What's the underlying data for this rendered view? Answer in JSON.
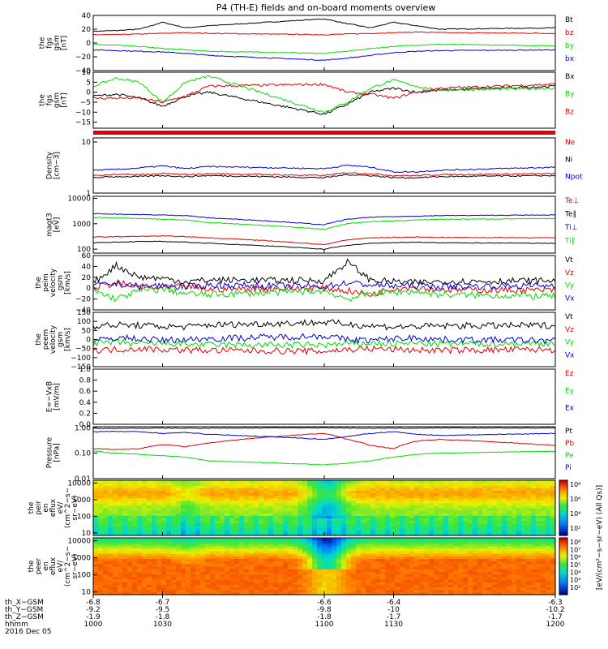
{
  "title": "P4 (TH-E) fields and on-board moments overview",
  "colors": {
    "black": "#000000",
    "red": "#e00000",
    "green": "#00dd00",
    "blue": "#0000e0"
  },
  "chart_data": [
    {
      "type": "line",
      "id": "fgs_gsm",
      "ylabel": [
        "the",
        "fgs",
        "gsm",
        "[nT]"
      ],
      "ylim": [
        -40,
        40
      ],
      "ticks": [
        "40",
        "20",
        "0",
        "−20",
        "−40"
      ],
      "tick_values": [
        40,
        20,
        0,
        -20,
        -40
      ],
      "x": [
        1000,
        1010,
        1020,
        1030,
        1040,
        1050,
        1100,
        1110,
        1120,
        1130,
        1140,
        1150,
        1200
      ],
      "series": [
        {
          "name": "Bt",
          "color": "black",
          "values": [
            17,
            18,
            20,
            30,
            22,
            25,
            35,
            28,
            22,
            30,
            25,
            20,
            22
          ]
        },
        {
          "name": "bz",
          "color": "red",
          "values": [
            12,
            12,
            13,
            14,
            15,
            14,
            12,
            13,
            14,
            15,
            16,
            15,
            14
          ]
        },
        {
          "name": "by",
          "color": "green",
          "values": [
            -2,
            -3,
            -5,
            -8,
            -10,
            -12,
            -15,
            -12,
            -8,
            -5,
            -3,
            -2,
            -4
          ]
        },
        {
          "name": "bx",
          "color": "blue",
          "values": [
            -10,
            -11,
            -12,
            -13,
            -15,
            -18,
            -25,
            -22,
            -18,
            -14,
            -12,
            -11,
            -10
          ]
        }
      ]
    },
    {
      "type": "line",
      "id": "fgs_dsl",
      "ylabel": [
        "the",
        "fgs",
        "gsm",
        "[nT]"
      ],
      "ylim": [
        -18,
        10
      ],
      "ticks": [
        "10",
        "5",
        "0",
        "−5",
        "−10",
        "−15"
      ],
      "tick_values": [
        10,
        5,
        0,
        -5,
        -10,
        -15
      ],
      "x": [
        1000,
        1010,
        1020,
        1030,
        1040,
        1050,
        1100,
        1110,
        1120,
        1130,
        1140,
        1150,
        1200
      ],
      "series": [
        {
          "name": "Bx",
          "color": "black",
          "values": [
            -2,
            -1,
            -3,
            -7,
            -2,
            0,
            -11,
            -6,
            0,
            2,
            0,
            1,
            3
          ]
        },
        {
          "name": "By",
          "color": "green",
          "values": [
            3,
            7,
            5,
            -5,
            5,
            8,
            -10,
            -5,
            2,
            6,
            3,
            1,
            2
          ]
        },
        {
          "name": "Bz",
          "color": "red",
          "values": [
            -3,
            -3,
            -3,
            -5,
            -2,
            3,
            4,
            0,
            -1,
            -3,
            0,
            2,
            4
          ]
        }
      ]
    },
    {
      "type": "line",
      "id": "density",
      "log": true,
      "ylabel": [
        "Density",
        "[cm−3]"
      ],
      "ylim": [
        1,
        12
      ],
      "ticks": [
        "10",
        "1"
      ],
      "tick_values": [
        10,
        1
      ],
      "x": [
        1000,
        1010,
        1020,
        1030,
        1040,
        1050,
        1100,
        1110,
        1120,
        1130,
        1140,
        1150,
        1200
      ],
      "series": [
        {
          "name": "Ne",
          "color": "red",
          "values": [
            2.2,
            2.3,
            2.3,
            2.4,
            2.3,
            2.4,
            2.2,
            2.5,
            2.4,
            2.2,
            2.2,
            2.3,
            2.4
          ]
        },
        {
          "name": "Ni",
          "color": "black",
          "values": [
            2.0,
            2.1,
            2.1,
            2.2,
            2.1,
            2.2,
            2.0,
            2.3,
            2.2,
            2.0,
            2.0,
            2.1,
            2.2
          ]
        },
        {
          "name": "Npot",
          "color": "blue",
          "values": [
            2.8,
            2.9,
            3.1,
            3.4,
            3.0,
            3.3,
            3.0,
            3.5,
            3.2,
            2.6,
            2.6,
            2.8,
            3.2
          ]
        }
      ]
    },
    {
      "type": "line",
      "id": "temperature",
      "log": true,
      "ylabel": [
        "magt3",
        "[eV]"
      ],
      "ylim": [
        70,
        12000
      ],
      "ticks": [
        "10000",
        "1000",
        "100"
      ],
      "tick_values": [
        10000,
        1000,
        100
      ],
      "x": [
        1000,
        1010,
        1020,
        1030,
        1040,
        1050,
        1100,
        1110,
        1120,
        1130,
        1140,
        1150,
        1200
      ],
      "series": [
        {
          "name": "Te⊥",
          "color": "red",
          "values": [
            300,
            310,
            320,
            330,
            310,
            280,
            150,
            230,
            280,
            290,
            300,
            290,
            280
          ]
        },
        {
          "name": "Te∥",
          "color": "black",
          "values": [
            180,
            190,
            200,
            200,
            190,
            170,
            100,
            140,
            170,
            180,
            190,
            180,
            170
          ]
        },
        {
          "name": "Ti⊥",
          "color": "blue",
          "values": [
            2500,
            2400,
            2300,
            2200,
            2100,
            1700,
            900,
            1500,
            1800,
            1900,
            2000,
            2100,
            2200
          ]
        },
        {
          "name": "Ti∥",
          "color": "green",
          "values": [
            1800,
            1700,
            1600,
            1500,
            1400,
            1100,
            600,
            1000,
            1200,
            1300,
            1400,
            1500,
            1600
          ]
        }
      ]
    },
    {
      "type": "line",
      "id": "peim_velocity",
      "ylabel": [
        "the",
        "peim",
        "velocity",
        "gsm",
        "[km/s]"
      ],
      "ylim": [
        -40,
        60
      ],
      "ticks": [
        "60",
        "40",
        "20",
        "0",
        "−20",
        "−40"
      ],
      "tick_values": [
        60,
        40,
        20,
        0,
        -20,
        -40
      ],
      "x": [
        1000,
        1010,
        1020,
        1030,
        1040,
        1050,
        1100,
        1110,
        1120,
        1130,
        1140,
        1150,
        1200
      ],
      "series": [
        {
          "name": "Vt",
          "color": "black",
          "values": [
            10,
            42,
            20,
            18,
            12,
            15,
            14,
            48,
            15,
            12,
            10,
            12,
            14
          ]
        },
        {
          "name": "Vz",
          "color": "red",
          "values": [
            0,
            10,
            2,
            0,
            3,
            -2,
            0,
            -5,
            -12,
            0,
            2,
            -3,
            -4
          ]
        },
        {
          "name": "Vy",
          "color": "green",
          "values": [
            -5,
            -20,
            -5,
            -2,
            -10,
            -12,
            -5,
            -20,
            -10,
            -8,
            -6,
            -12,
            -15
          ]
        },
        {
          "name": "Vx",
          "color": "blue",
          "values": [
            5,
            8,
            3,
            5,
            2,
            6,
            3,
            10,
            6,
            4,
            5,
            3,
            5
          ]
        }
      ]
    },
    {
      "type": "line",
      "id": "peem_velocity",
      "ylabel": [
        "the",
        "peem",
        "velocity",
        "gsm",
        "[km/s]"
      ],
      "ylim": [
        -150,
        150
      ],
      "ticks": [
        "150",
        "100",
        "50",
        "0",
        "−50",
        "−100",
        "−150"
      ],
      "tick_values": [
        150,
        100,
        50,
        0,
        -50,
        -100,
        -150
      ],
      "x": [
        1000,
        1010,
        1020,
        1030,
        1040,
        1050,
        1100,
        1110,
        1120,
        1130,
        1140,
        1150,
        1200
      ],
      "series": [
        {
          "name": "Vt",
          "color": "black",
          "values": [
            75,
            80,
            78,
            72,
            70,
            80,
            95,
            85,
            75,
            70,
            72,
            75,
            78
          ]
        },
        {
          "name": "Vz",
          "color": "red",
          "values": [
            -60,
            -55,
            -50,
            -55,
            -58,
            -60,
            -65,
            -55,
            -50,
            -55,
            -58,
            -60,
            -55
          ]
        },
        {
          "name": "Vy",
          "color": "green",
          "values": [
            -20,
            -15,
            -25,
            -20,
            -25,
            -30,
            -30,
            -25,
            -20,
            -25,
            -20,
            -25,
            -20
          ]
        },
        {
          "name": "Vx",
          "color": "blue",
          "values": [
            -10,
            10,
            5,
            -5,
            0,
            5,
            20,
            0,
            -5,
            5,
            10,
            0,
            -5
          ]
        }
      ]
    },
    {
      "type": "line",
      "id": "e_field",
      "ylabel": [
        "E=−VxB",
        "[mV/m]"
      ],
      "ylim": [
        0,
        1
      ],
      "ticks": [
        "1.0",
        "0.8",
        "0.6",
        "0.4",
        "0.2",
        "0.0"
      ],
      "tick_values": [
        1.0,
        0.8,
        0.6,
        0.4,
        0.2,
        0.0
      ],
      "x": [],
      "series": [
        {
          "name": "Ez",
          "color": "red",
          "values": []
        },
        {
          "name": "Ey",
          "color": "green",
          "values": []
        },
        {
          "name": "Ex",
          "color": "blue",
          "values": []
        }
      ]
    },
    {
      "type": "line",
      "id": "pressure",
      "log": true,
      "ylabel": [
        "Pressure",
        "[nPa]"
      ],
      "ylim": [
        0.01,
        1.1
      ],
      "ticks": [
        "1.00",
        "0.10",
        "0.01"
      ],
      "tick_values": [
        1.0,
        0.1,
        0.01
      ],
      "x": [
        1000,
        1010,
        1020,
        1030,
        1040,
        1050,
        1100,
        1110,
        1120,
        1130,
        1140,
        1150,
        1200
      ],
      "series": [
        {
          "name": "Pt",
          "color": "black",
          "values": [
            0.95,
            0.95,
            0.96,
            0.97,
            0.96,
            0.97,
            1.0,
            0.98,
            0.96,
            0.96,
            0.97,
            0.98,
            0.98
          ]
        },
        {
          "name": "Pb",
          "color": "red",
          "values": [
            0.15,
            0.14,
            0.15,
            0.22,
            0.18,
            0.25,
            0.6,
            0.35,
            0.2,
            0.15,
            0.3,
            0.35,
            0.2
          ]
        },
        {
          "name": "Pe",
          "color": "green",
          "values": [
            0.12,
            0.1,
            0.09,
            0.08,
            0.07,
            0.05,
            0.035,
            0.04,
            0.05,
            0.07,
            0.09,
            0.1,
            0.12
          ]
        },
        {
          "name": "Pi",
          "color": "blue",
          "values": [
            0.7,
            0.72,
            0.7,
            0.6,
            0.65,
            0.55,
            0.35,
            0.45,
            0.6,
            0.7,
            0.55,
            0.5,
            0.6
          ]
        }
      ]
    },
    {
      "type": "heatmap",
      "id": "peir_eflux",
      "log": true,
      "ylabel": [
        "the",
        "peir",
        "en",
        "eflux",
        "eV/",
        "(cm^2−s−",
        "sr−eV)"
      ],
      "ylim": [
        7,
        15000
      ],
      "ticks": [
        "10000",
        "1000",
        "100",
        "10"
      ],
      "tick_values": [
        10000,
        1000,
        100,
        10
      ],
      "colorbar_ticks": [
        "10⁸",
        "10⁶",
        "10⁴",
        "10²"
      ],
      "colorbar_label": "[eV/(cm²−s−sr−eV) (All Qs)]"
    },
    {
      "type": "heatmap",
      "id": "peer_eflux",
      "log": true,
      "ylabel": [
        "the",
        "peer",
        "en",
        "eflux",
        "eV/",
        "(cm^2−s−",
        "sr−eV)"
      ],
      "ylim": [
        7,
        15000
      ],
      "ticks": [
        "10000",
        "1000",
        "100",
        "10"
      ],
      "tick_values": [
        10000,
        1000,
        100,
        10
      ],
      "colorbar_ticks": [
        "10⁸",
        "10⁷",
        "10⁶",
        "10⁵",
        "10⁴",
        "10³",
        "10²"
      ],
      "colorbar_label": "[eV/(cm²−s−sr−eV) (All Qs)]"
    }
  ],
  "orbit": {
    "labels": [
      "th_X−GSM",
      "th_Y−GSM",
      "th_Z−GSM",
      "hhmm",
      "2016 Dec 05"
    ],
    "columns": [
      {
        "x": -6.8,
        "y": -9.2,
        "z": -1.9,
        "time": "1000",
        "t": 1000
      },
      {
        "x": -6.7,
        "y": -9.5,
        "z": -1.8,
        "time": "1030",
        "t": 1030
      },
      {
        "x": -6.6,
        "y": -9.8,
        "z": -1.8,
        "time": "1100",
        "t": 1100
      },
      {
        "x": -6.4,
        "y": -10.0,
        "z": -1.7,
        "time": "1130",
        "t": 1130
      },
      {
        "x": -6.3,
        "y": -10.2,
        "z": -1.7,
        "time": "1200",
        "t": 1200
      }
    ]
  }
}
